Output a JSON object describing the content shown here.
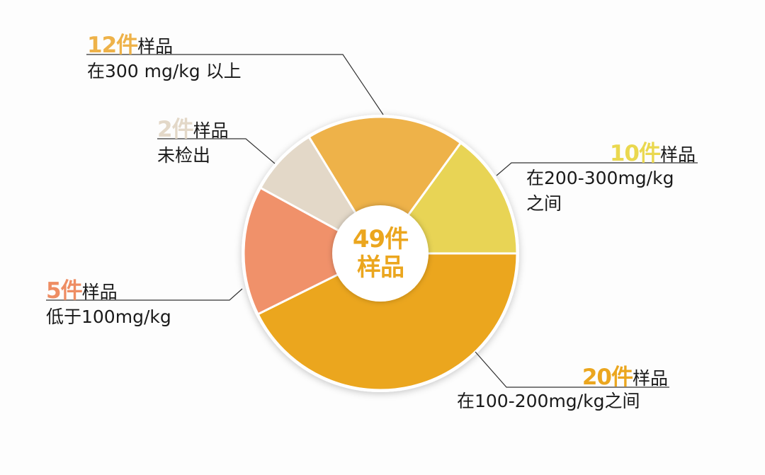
{
  "chart_data": {
    "type": "pie",
    "variant": "donut",
    "title": "",
    "center_label": {
      "line1": "49件",
      "line2": "样品",
      "total": 49
    },
    "slices": [
      {
        "id": "s20",
        "count": 20,
        "count_label": "20件",
        "unit_label": "样品",
        "desc": [
          "在100-200mg/kg之间"
        ],
        "color": "#eba61e",
        "start_deg": 0,
        "end_deg": 153.6
      },
      {
        "id": "s5",
        "count": 5,
        "count_label": "5件",
        "unit_label": "样品",
        "desc": [
          "低于100mg/kg"
        ],
        "color": "#f0916a",
        "start_deg": 153.6,
        "end_deg": 208.7
      },
      {
        "id": "s2",
        "count": 2,
        "count_label": "2件",
        "unit_label": "样品",
        "desc": [
          "未检出"
        ],
        "color": "#e3d8c8",
        "start_deg": 208.7,
        "end_deg": 238.5
      },
      {
        "id": "s12",
        "count": 12,
        "count_label": "12件",
        "unit_label": "样品",
        "desc": [
          "在300 mg/kg 以上"
        ],
        "color": "#eeb249",
        "start_deg": 238.5,
        "end_deg": 306
      },
      {
        "id": "s10",
        "count": 10,
        "count_label": "10件",
        "unit_label": "样品",
        "desc": [
          "在200-300mg/kg",
          "之间"
        ],
        "color": "#e8d455",
        "start_deg": 306,
        "end_deg": 360
      }
    ],
    "label_colors": {
      "s20": "#eba61e",
      "s5": "#ee8d63",
      "s2": "#e3d8c8",
      "s12": "#eeb249",
      "s10": "#ead84f",
      "center": "#eba61e"
    }
  }
}
